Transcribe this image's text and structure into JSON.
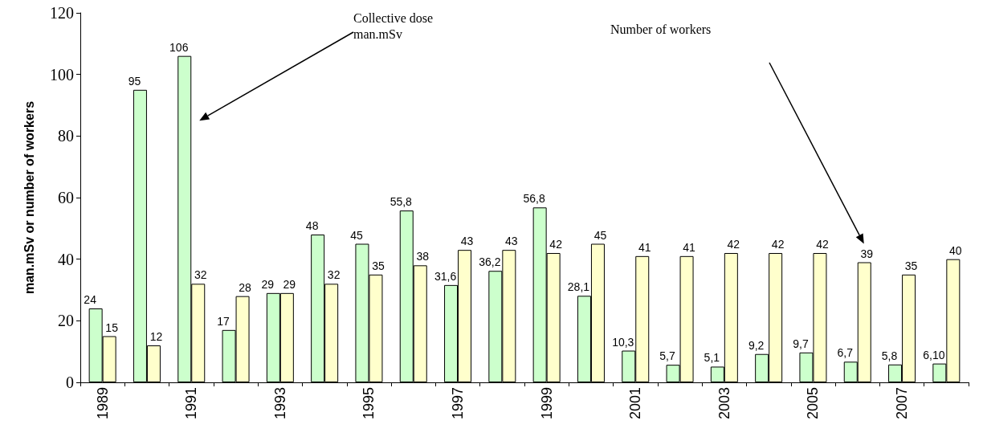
{
  "chart_data": {
    "type": "bar",
    "ylabel": "man.mSv or number of workers",
    "categories": [
      "1989",
      null,
      "1991",
      null,
      "1993",
      null,
      "1995",
      null,
      "1997",
      null,
      "1999",
      null,
      "2001",
      null,
      "2003",
      null,
      "2005",
      null,
      "2007",
      null
    ],
    "series": [
      {
        "color": "#ccffcc",
        "values": [
          24,
          95,
          106,
          17,
          29,
          48,
          45,
          55.8,
          31.6,
          36.2,
          56.8,
          28.1,
          10.3,
          5.7,
          5.1,
          9.2,
          9.7,
          6.7,
          5.8,
          6.1
        ],
        "value_labels": [
          "24",
          "95",
          "106",
          "17",
          "29",
          "48",
          "45",
          "55,8",
          "31,6",
          "36,2",
          "56,8",
          "28,1",
          "10,3",
          "5,7",
          "5,1",
          "9,2",
          "9,7",
          "6,7",
          "5,8",
          "6,10"
        ]
      },
      {
        "color": "#ffffcc",
        "values": [
          15,
          12,
          32,
          28,
          29,
          32,
          35,
          38,
          43,
          43,
          42,
          45,
          41,
          41,
          42,
          42,
          42,
          39,
          35,
          40
        ],
        "value_labels": [
          "15",
          "12",
          "32",
          "28",
          "29",
          "32",
          "35",
          "38",
          "43",
          "43",
          "42",
          "45",
          "41",
          "41",
          "42",
          "42",
          "42",
          "39",
          "35",
          "40"
        ]
      }
    ],
    "ylim": [
      0,
      120
    ],
    "yticks": [
      0,
      20,
      40,
      60,
      80,
      100,
      120
    ],
    "grid": false,
    "annotations": [
      "Collective dose\nman.mSv",
      "Number of workers"
    ]
  }
}
